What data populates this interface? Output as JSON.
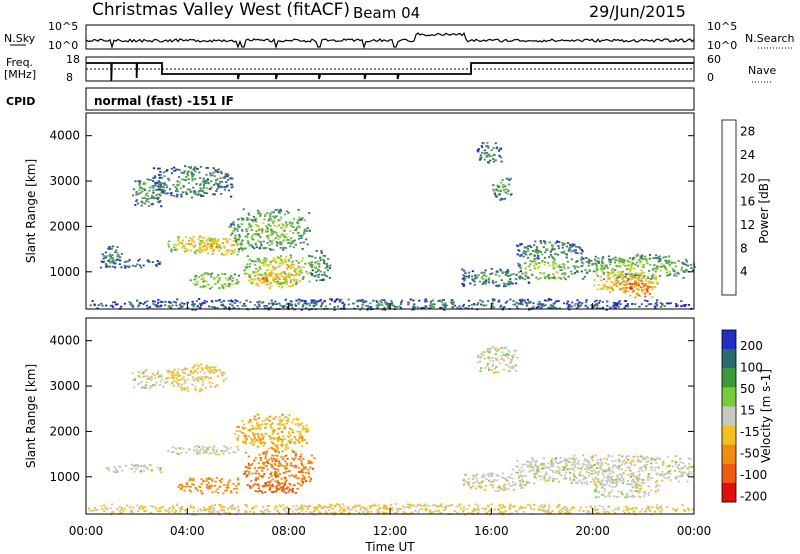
{
  "header": {
    "station": "Christmas Valley West (fitACF)",
    "beam": "Beam 04",
    "date": "29/Jun/2015"
  },
  "top_panels": {
    "nsky_label": "N.Sky",
    "nsky_ticks": [
      "10^5",
      "10^0"
    ],
    "nsearch_label": "N.Search",
    "nsearch_ticks": [
      "10^5",
      "10^0"
    ],
    "freq_label": "Freq.",
    "freq_unit": "[MHz]",
    "freq_ticks": [
      "18",
      "8"
    ],
    "nave_label": "Nave",
    "nave_ticks": [
      "60",
      "0"
    ],
    "cpid_label": "CPID",
    "cpid_value": "normal (fast) -151 IF"
  },
  "time_axis": {
    "label": "Time UT",
    "ticks": [
      "00:00",
      "04:00",
      "08:00",
      "12:00",
      "16:00",
      "20:00",
      "00:00"
    ]
  },
  "chart_data": [
    {
      "type": "heatmap",
      "parameter": "power",
      "ylabel": "Slant Range [km]",
      "yticks": [
        "1000",
        "2000",
        "3000",
        "4000"
      ],
      "ylim": [
        180,
        4500
      ],
      "xlabel": "Time UT",
      "xlim_hours": [
        0,
        24
      ],
      "colorbar_label": "Power [dB]",
      "colorbar_ticks": [
        "4",
        "8",
        "12",
        "16",
        "20",
        "24",
        "28"
      ],
      "colorbar_range": [
        0,
        30
      ],
      "colors": [
        "#1a1adf",
        "#2d4fa0",
        "#3d7a6a",
        "#4f9a5a",
        "#6cc23a",
        "#c9d42a",
        "#f0c020",
        "#f59a10",
        "#f06010",
        "#e02010"
      ],
      "echo_regions": [
        {
          "t": [
            1.8,
            3.0
          ],
          "r": [
            2450,
            3100
          ],
          "v": 12
        },
        {
          "t": [
            2.6,
            5.8
          ],
          "r": [
            2650,
            3350
          ],
          "v": 10
        },
        {
          "t": [
            3.2,
            5.4
          ],
          "r": [
            1450,
            1800
          ],
          "v": 20
        },
        {
          "t": [
            4.2,
            6.2
          ],
          "r": [
            1380,
            1750
          ],
          "v": 22
        },
        {
          "t": [
            5.6,
            8.8
          ],
          "r": [
            1500,
            2400
          ],
          "v": 14
        },
        {
          "t": [
            0.6,
            1.4
          ],
          "r": [
            1200,
            1600
          ],
          "v": 10
        },
        {
          "t": [
            0.3,
            3.0
          ],
          "r": [
            1100,
            1300
          ],
          "v": 9
        },
        {
          "t": [
            4.0,
            6.0
          ],
          "r": [
            650,
            1000
          ],
          "v": 16
        },
        {
          "t": [
            6.2,
            9.0
          ],
          "r": [
            750,
            1400
          ],
          "v": 18
        },
        {
          "t": [
            6.4,
            8.4
          ],
          "r": [
            650,
            1000
          ],
          "v": 22
        },
        {
          "t": [
            8.8,
            9.6
          ],
          "r": [
            800,
            1500
          ],
          "v": 12
        },
        {
          "t": [
            15.4,
            16.4
          ],
          "r": [
            3400,
            3900
          ],
          "v": 10
        },
        {
          "t": [
            16.0,
            16.8
          ],
          "r": [
            2600,
            3100
          ],
          "v": 12
        },
        {
          "t": [
            14.8,
            17.5
          ],
          "r": [
            700,
            1100
          ],
          "v": 10
        },
        {
          "t": [
            16.8,
            19.6
          ],
          "r": [
            1300,
            1700
          ],
          "v": 10
        },
        {
          "t": [
            17.0,
            19.4
          ],
          "r": [
            850,
            1300
          ],
          "v": 16
        },
        {
          "t": [
            19.4,
            24.0
          ],
          "r": [
            850,
            1400
          ],
          "v": 14
        },
        {
          "t": [
            20.0,
            22.6
          ],
          "r": [
            550,
            1000
          ],
          "v": 22
        },
        {
          "t": [
            21.2,
            22.4
          ],
          "r": [
            450,
            900
          ],
          "v": 26
        },
        {
          "t": [
            0.0,
            24.0
          ],
          "r": [
            180,
            420
          ],
          "v": 8
        }
      ]
    },
    {
      "type": "heatmap",
      "parameter": "velocity",
      "ylabel": "Slant Range [km]",
      "yticks": [
        "1000",
        "2000",
        "3000",
        "4000"
      ],
      "ylim": [
        180,
        4500
      ],
      "xlabel": "Time UT",
      "xlim_hours": [
        0,
        24
      ],
      "colorbar_label": "Velocity [m s-1]",
      "colorbar_ticks": [
        "200",
        "100",
        "50",
        "15",
        "-15",
        "-50",
        "-100",
        "-200"
      ],
      "colors": [
        "#2030c0",
        "#2a6a70",
        "#3c9a3c",
        "#7acc3a",
        "#c8c8c0",
        "#f2c020",
        "#f08c10",
        "#f05a10",
        "#e01010"
      ],
      "echo_regions": [
        {
          "t": [
            1.8,
            3.0
          ],
          "r": [
            2950,
            3400
          ],
          "v": 0
        },
        {
          "t": [
            3.0,
            5.5
          ],
          "r": [
            2900,
            3500
          ],
          "v": -20
        },
        {
          "t": [
            3.0,
            6.0
          ],
          "r": [
            1500,
            1700
          ],
          "v": 0
        },
        {
          "t": [
            5.8,
            8.8
          ],
          "r": [
            1600,
            2400
          ],
          "v": -40
        },
        {
          "t": [
            3.6,
            6.0
          ],
          "r": [
            650,
            1000
          ],
          "v": -80
        },
        {
          "t": [
            6.2,
            9.0
          ],
          "r": [
            750,
            1600
          ],
          "v": -90
        },
        {
          "t": [
            6.4,
            8.4
          ],
          "r": [
            650,
            900
          ],
          "v": -120
        },
        {
          "t": [
            0.6,
            3.0
          ],
          "r": [
            1100,
            1300
          ],
          "v": 0
        },
        {
          "t": [
            15.4,
            17.0
          ],
          "r": [
            3300,
            3900
          ],
          "v": 0
        },
        {
          "t": [
            14.8,
            17.5
          ],
          "r": [
            700,
            1100
          ],
          "v": 0
        },
        {
          "t": [
            16.8,
            24.0
          ],
          "r": [
            850,
            1500
          ],
          "v": 0
        },
        {
          "t": [
            20.0,
            22.6
          ],
          "r": [
            550,
            1000
          ],
          "v": 0
        },
        {
          "t": [
            0.0,
            24.0
          ],
          "r": [
            180,
            420
          ],
          "v": -20
        }
      ]
    }
  ]
}
